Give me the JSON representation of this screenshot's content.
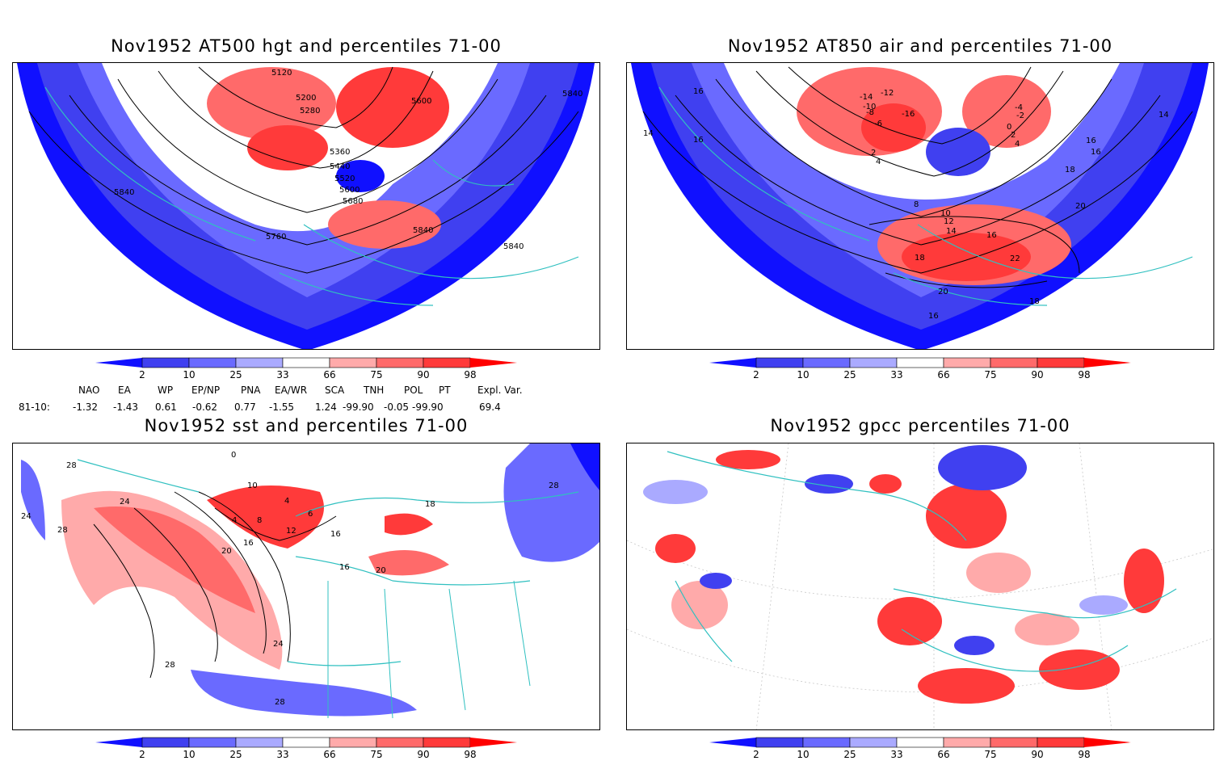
{
  "panels": [
    {
      "title": "Nov1952 AT500 hgt and percentiles 71-00",
      "labels": [
        "5120",
        "5200",
        "5280",
        "5360",
        "5440",
        "5520",
        "5600",
        "5680",
        "5600",
        "5840",
        "5840",
        "5760",
        "5840",
        "5840"
      ]
    },
    {
      "title": "Nov1952 AT850 air and percentiles 71-00",
      "labels": [
        "16",
        "14",
        "16",
        "-14",
        "-12",
        "-10",
        "-8",
        "-6",
        "2",
        "4",
        "-16",
        "-4",
        "-2",
        "0",
        "2",
        "4",
        "16",
        "16",
        "14",
        "18",
        "20",
        "8",
        "10",
        "12",
        "14",
        "16",
        "18",
        "22",
        "20",
        "18",
        "16"
      ]
    },
    {
      "title": "Nov1952 sst and percentiles 71-00",
      "labels": [
        "28",
        "24",
        "24",
        "28",
        "0",
        "10",
        "4",
        "4",
        "8",
        "12",
        "6",
        "16",
        "20",
        "16",
        "20",
        "16",
        "24",
        "28",
        "28",
        "28",
        "18"
      ]
    },
    {
      "title": "Nov1952 gpcc percentiles 71-00",
      "labels": []
    }
  ],
  "colorbar": {
    "ticks": [
      "2",
      "10",
      "25",
      "33",
      "66",
      "75",
      "90",
      "98"
    ],
    "colors": {
      "lt2": "#1010ff",
      "c2_10": "#4040f0",
      "c10_25": "#6a6aff",
      "c25_33": "#aaaaff",
      "c33_66": "#ffffff",
      "c66_75": "#ffaaaa",
      "c75_90": "#ff6a6a",
      "c90_98": "#ff3a3a",
      "gt98": "#ff0000"
    }
  },
  "indices": {
    "header": [
      "NAO",
      "EA",
      "WP",
      "EP/NP",
      "PNA",
      "EA/WR",
      "SCA",
      "TNH",
      "POL",
      "PT",
      "Expl. Var."
    ],
    "row_label": "81-10:",
    "values": [
      "-1.32",
      "-1.43",
      "0.61",
      "-0.62",
      "0.77",
      "-1.55",
      "1.24",
      "-99.90",
      "-0.05",
      "-99.90",
      "69.4"
    ]
  },
  "colors": {
    "coast": "#30c0c0",
    "contour": "#000000",
    "frame": "#000000"
  }
}
